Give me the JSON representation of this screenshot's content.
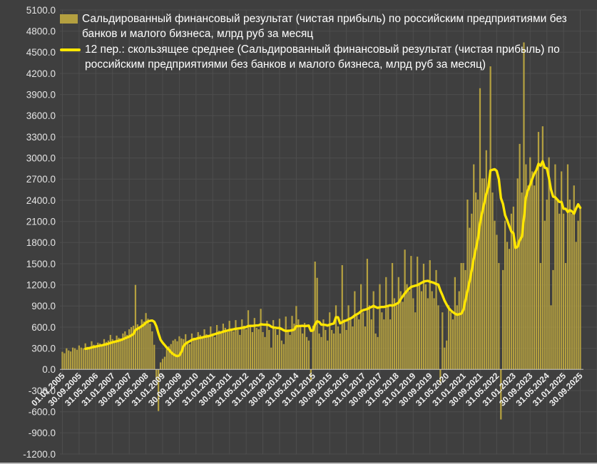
{
  "colors": {
    "background": "#3f3f3f",
    "grid": "#4e4e4e",
    "bar": "#b4a040",
    "line": "#ffe600",
    "zero_axis": "#d9d9d9",
    "y_tick_text": "#e4e4e4",
    "x_tick_text": "#f0f0f0",
    "legend_text": "#ffffff"
  },
  "chart_data": {
    "type": "bar",
    "title": "",
    "legend_position": "top-left-overlay",
    "grid": "on",
    "series": [
      {
        "name": "Сальдированный финансовый результат (чистая прибыль) по российским предприятиями без банков и малого бизнеса, млрд руб за месяц",
        "type": "bar",
        "color": "#b4a040"
      },
      {
        "name": "12 пер.: скользящее среднее (Сальдированный финансовый результат (чистая прибыль) по российским предприятиями без банков и малого бизнеса, млрд руб за месяц)",
        "type": "line",
        "color": "#ffe600",
        "derived": "trailing moving average of series 0",
        "moving_average_period": 12
      }
    ],
    "x_start_month": "2005-01",
    "x_end_month": "2025-09",
    "x_tick_every_months": 8,
    "x_tick_labels": [
      "01.01.2005",
      "30.09.2005",
      "31.05.2006",
      "31.01.2007",
      "30.09.2007",
      "31.05.2008",
      "31.01.2009",
      "30.09.2009",
      "31.05.2010",
      "31.01.2011",
      "30.09.2011",
      "31.05.2012",
      "31.01.2013",
      "30.09.2013",
      "31.05.2014",
      "31.01.2015",
      "30.09.2015",
      "31.05.2016",
      "31.01.2017",
      "30.09.2017",
      "31.05.2018",
      "31.01.2019",
      "30.09.2019",
      "31.05.2020",
      "31.01.2021",
      "30.09.2021",
      "31.05.2022",
      "31.01.2023",
      "30.09.2023",
      "31.05.2024",
      "31.01.2025",
      "30.09.2025"
    ],
    "ylim": [
      -1200,
      5100
    ],
    "y_step": 300,
    "y_tick_format": "#.0",
    "monthly_values": [
      250,
      230,
      300,
      270,
      255,
      310,
      300,
      280,
      340,
      310,
      300,
      370,
      320,
      290,
      400,
      350,
      330,
      380,
      370,
      350,
      430,
      390,
      410,
      490,
      430,
      390,
      480,
      450,
      440,
      510,
      540,
      490,
      570,
      600,
      620,
      1200,
      640,
      600,
      710,
      680,
      800,
      720,
      650,
      540,
      350,
      -150,
      -590,
      100,
      150,
      180,
      290,
      330,
      360,
      410,
      430,
      400,
      470,
      440,
      430,
      500,
      390,
      360,
      510,
      450,
      420,
      530,
      490,
      460,
      570,
      500,
      490,
      610,
      510,
      460,
      630,
      550,
      510,
      650,
      590,
      530,
      690,
      560,
      540,
      700,
      560,
      490,
      710,
      620,
      570,
      840,
      610,
      530,
      730,
      590,
      570,
      860,
      530,
      460,
      690,
      560,
      310,
      700,
      570,
      490,
      720,
      410,
      360,
      750,
      560,
      490,
      760,
      650,
      900,
      710,
      610,
      510,
      660,
      460,
      410,
      -150,
      620,
      1530,
      1300,
      510,
      460,
      710,
      560,
      410,
      810,
      560,
      510,
      910,
      610,
      510,
      1480,
      710,
      560,
      910,
      710,
      610,
      1110,
      760,
      710,
      1210,
      810,
      610,
      1570,
      910,
      710,
      1110,
      510,
      460,
      1210,
      810,
      710,
      1310,
      910,
      710,
      1510,
      1010,
      910,
      1310,
      1110,
      960,
      1700,
      1210,
      1110,
      1610,
      1010,
      810,
      1600,
      1210,
      1110,
      1500,
      1210,
      1010,
      1550,
      1110,
      1010,
      1410,
      910,
      -200,
      810,
      310,
      410,
      910,
      810,
      710,
      1310,
      910,
      1110,
      1510,
      1510,
      1410,
      2410,
      2010,
      2210,
      2910,
      2510,
      2410,
      3990,
      2710,
      2710,
      3110,
      2610,
      4300,
      2510,
      2110,
      1910,
      1510,
      -710,
      1410,
      2110,
      1810,
      1710,
      2210,
      2310,
      1810,
      2710,
      3200,
      2510,
      4640,
      2910,
      2610,
      3010,
      2810,
      2610,
      2810,
      3370,
      1510,
      3450,
      2110,
      2410,
      3010,
      910,
      1410,
      2910,
      2410,
      2210,
      2810,
      2210,
      1510,
      2910,
      2410,
      2210,
      2610,
      1810,
      2110,
      2310
    ]
  }
}
